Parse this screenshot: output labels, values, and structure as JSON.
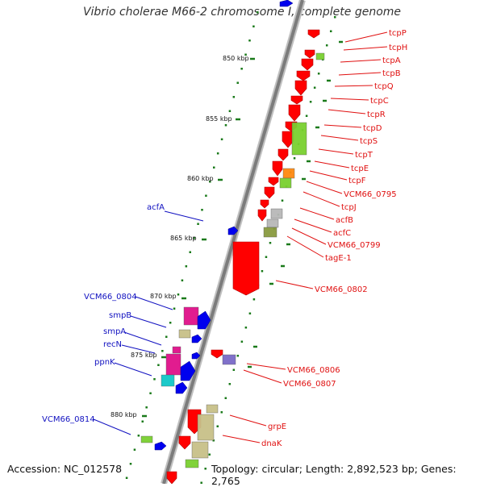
{
  "title": "Vibrio cholerae M66-2 chromosome I, complete genome",
  "footer": {
    "accession": "Accession: NC_012578",
    "info": "Topology: circular; Length: 2,892,523 bp; Genes: 2,765"
  },
  "ruler_labels": [
    "850 kbp",
    "855 kbp",
    "860 kbp",
    "865 kbp",
    "870 kbp",
    "875 kbp",
    "880 kbp"
  ],
  "genes_right": [
    "tcpP",
    "tcpH",
    "tcpA",
    "tcpB",
    "tcpQ",
    "tcpC",
    "tcpR",
    "tcpD",
    "tcpS",
    "tcpT",
    "tcpE",
    "tcpF",
    "VCM66_0795",
    "tcpJ",
    "acfB",
    "acfC",
    "VCM66_0799",
    "tagE-1",
    "VCM66_0802",
    "VCM66_0806",
    "VCM66_0807",
    "grpE",
    "dnaK"
  ],
  "genes_left": [
    "acfA",
    "VCM66_0804",
    "smpB",
    "smpA",
    "recN",
    "ppnK",
    "VCM66_0814"
  ],
  "colors": {
    "right_label": "#e01010",
    "left_label": "#1010c0",
    "tick": "#1a7a1a",
    "backbone": "#8a8a8a",
    "red_gene": "#ff0000",
    "blue_gene": "#0000ee",
    "magenta_gene": "#e0108a",
    "tan_gene": "#c8c088",
    "green_gene": "#7ad030",
    "orange_gene": "#ff8a10",
    "cyan_gene": "#10c8c8",
    "purple_gene": "#7a6ac8",
    "gray_gene": "#b8b8b8",
    "olive_gene": "#8a9a40"
  }
}
